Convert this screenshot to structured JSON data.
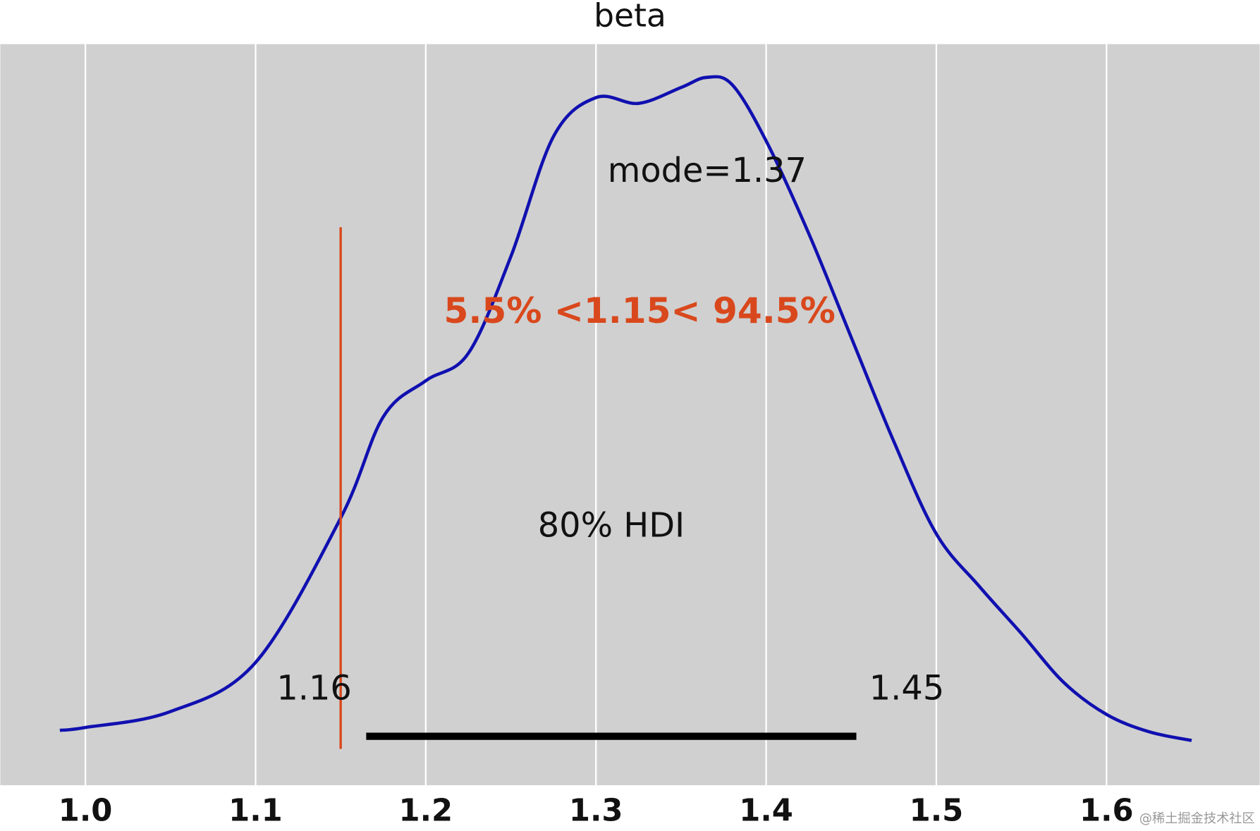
{
  "chart_data": {
    "type": "line",
    "title": "beta",
    "x": [
      0.985,
      1.0,
      1.05,
      1.1,
      1.15,
      1.175,
      1.2,
      1.225,
      1.25,
      1.275,
      1.3,
      1.325,
      1.35,
      1.365,
      1.38,
      1.4,
      1.425,
      1.45,
      1.475,
      1.5,
      1.525,
      1.55,
      1.575,
      1.6,
      1.625,
      1.65
    ],
    "series": [
      {
        "color": "#1010b0",
        "values": [
          0.14,
          0.16,
          0.27,
          0.61,
          1.61,
          2.31,
          2.56,
          2.75,
          3.42,
          4.25,
          4.52,
          4.48,
          4.59,
          4.66,
          4.61,
          4.22,
          3.58,
          2.86,
          2.14,
          1.5,
          1.14,
          0.81,
          0.47,
          0.25,
          0.13,
          0.07
        ]
      }
    ],
    "xlim": [
      0.95,
      1.69
    ],
    "ylim": [
      -0.24,
      4.89
    ],
    "xticks": [
      {
        "value": 1,
        "label": "1.0"
      },
      1.1,
      1.2,
      1.3,
      1.4,
      1.5,
      1.6
    ],
    "grid": true,
    "mode_label": "mode=1.37",
    "ref_val": 1.15,
    "ref_color": "#d9481c",
    "ref_label": "5.5% <1.15< 94.5%",
    "hdi": {
      "values": [
        1.165,
        1.453
      ],
      "value_labels": [
        "1.16",
        "1.45"
      ],
      "label": "80% HDI",
      "color": "#000000"
    },
    "watermark": "@稀土掘金技术社区"
  }
}
